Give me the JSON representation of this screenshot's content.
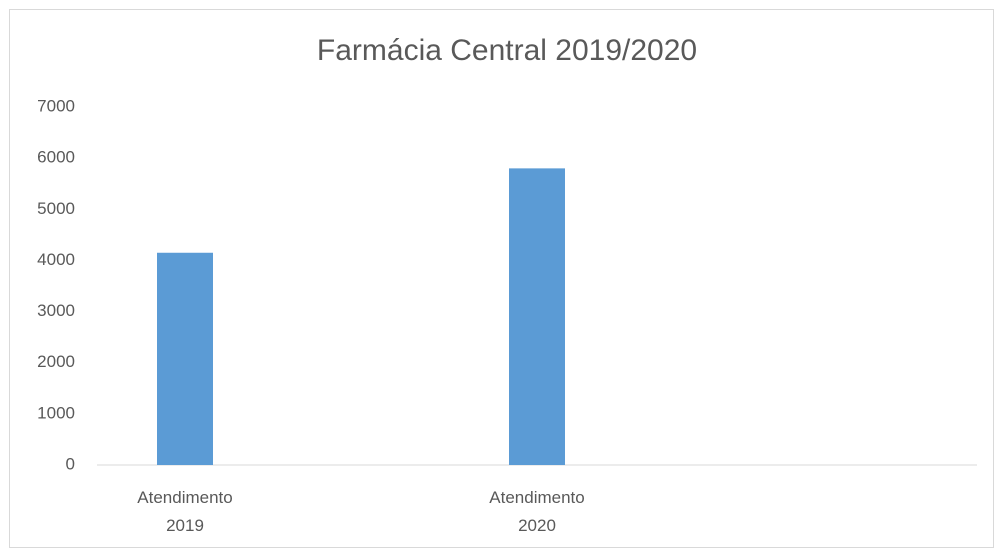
{
  "chart_data": {
    "type": "bar",
    "title": "Farmácia Central 2019/2020",
    "categories": [
      "Atendimento 2019",
      null,
      "Atendimento 2020",
      null,
      null
    ],
    "values": [
      4150,
      null,
      5800,
      null,
      null
    ],
    "color": "#5b9bd5",
    "ylim": [
      0,
      7000
    ],
    "yticks": [
      0,
      1000,
      2000,
      3000,
      4000,
      5000,
      6000,
      7000
    ],
    "grid": false
  }
}
